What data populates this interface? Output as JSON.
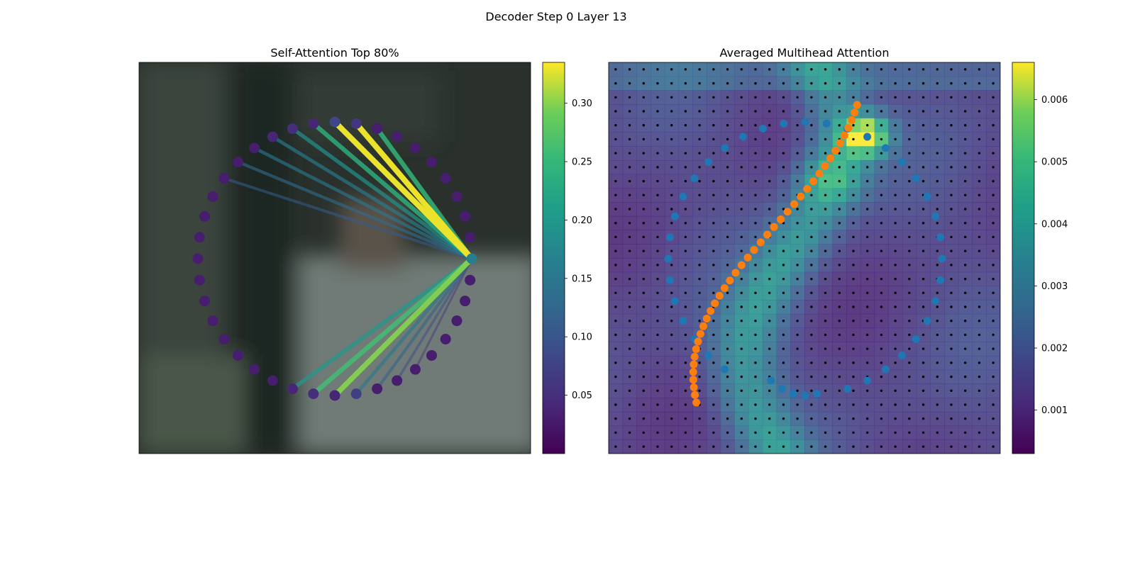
{
  "suptitle": "Decoder Step 0 Layer 13",
  "chart_data": [
    {
      "type": "network",
      "title": "Self-Attention Top 80%",
      "node_count": 40,
      "query_node": 0,
      "edges": [
        {
          "to": 10,
          "weight": 0.33
        },
        {
          "to": 9,
          "weight": 0.33
        },
        {
          "to": 11,
          "weight": 0.24
        },
        {
          "to": 8,
          "weight": 0.25
        },
        {
          "to": 12,
          "weight": 0.19
        },
        {
          "to": 13,
          "weight": 0.16
        },
        {
          "to": 14,
          "weight": 0.15
        },
        {
          "to": 15,
          "weight": 0.13
        },
        {
          "to": 16,
          "weight": 0.11
        },
        {
          "to": 30,
          "weight": 0.3
        },
        {
          "to": 29,
          "weight": 0.26
        },
        {
          "to": 28,
          "weight": 0.2
        },
        {
          "to": 31,
          "weight": 0.15
        },
        {
          "to": 32,
          "weight": 0.12
        },
        {
          "to": 33,
          "weight": 0.09
        },
        {
          "to": 34,
          "weight": 0.06
        }
      ],
      "node_weights": [
        0.16,
        0.03,
        0.03,
        0.03,
        0.03,
        0.03,
        0.03,
        0.03,
        0.03,
        0.06,
        0.08,
        0.04,
        0.05,
        0.04,
        0.03,
        0.03,
        0.03,
        0.03,
        0.03,
        0.03,
        0.03,
        0.03,
        0.03,
        0.03,
        0.03,
        0.03,
        0.03,
        0.03,
        0.04,
        0.05,
        0.04,
        0.07,
        0.03,
        0.03,
        0.03,
        0.03,
        0.03,
        0.03,
        0.03,
        0.03
      ],
      "colorbar": {
        "colormap": "viridis",
        "min": 0.0,
        "max": 0.335,
        "ticks": [
          "0.05",
          "0.10",
          "0.15",
          "0.20",
          "0.25",
          "0.30"
        ],
        "tick_values": [
          0.05,
          0.1,
          0.15,
          0.2,
          0.25,
          0.3
        ]
      }
    },
    {
      "type": "heatmap",
      "title": "Averaged Multihead Attention",
      "grid_size": 28,
      "series": [
        {
          "color": "#1f77b4",
          "points": "outer-ring"
        },
        {
          "color": "#ff7f0e",
          "points": "inner-s-curve"
        }
      ],
      "colorbar": {
        "colormap": "viridis",
        "min": 0.0003,
        "max": 0.0066,
        "ticks": [
          "0.001",
          "0.002",
          "0.003",
          "0.004",
          "0.005",
          "0.006"
        ],
        "tick_values": [
          0.001,
          0.002,
          0.003,
          0.004,
          0.005,
          0.006
        ]
      }
    }
  ]
}
